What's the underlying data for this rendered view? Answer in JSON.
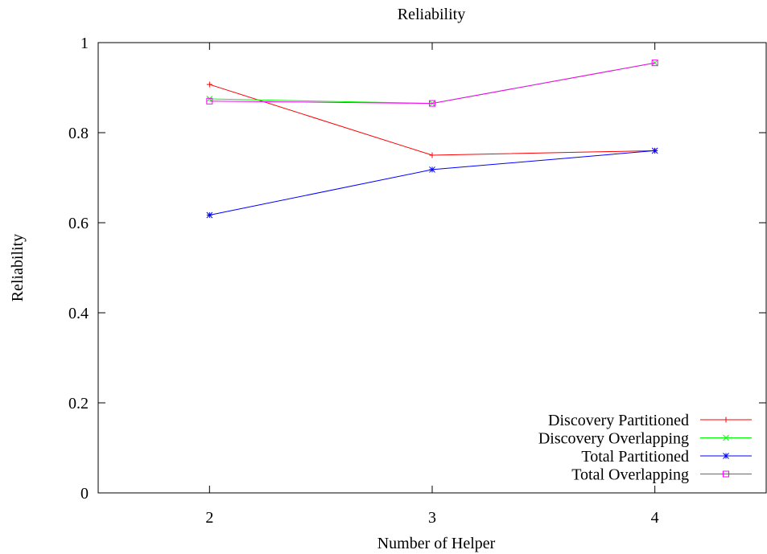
{
  "chart_data": {
    "type": "line",
    "title": "Reliability",
    "xlabel": "Number of Helper",
    "ylabel": "Reliability",
    "x": [
      2,
      3,
      4
    ],
    "xlim": [
      1.5,
      4.5
    ],
    "ylim": [
      0,
      1
    ],
    "xticks": [
      "2",
      "3",
      "4"
    ],
    "yticks": [
      "0",
      "0.2",
      "0.4",
      "0.6",
      "0.8",
      "1"
    ],
    "grid": false,
    "legend_position": "bottom-right",
    "series": [
      {
        "name": "Discovery Partitioned",
        "values": [
          0.907,
          0.75,
          0.76
        ],
        "color": "#ff0000",
        "marker": "plus"
      },
      {
        "name": "Discovery Overlapping",
        "values": [
          0.875,
          0.865,
          0.955
        ],
        "color": "#00ff00",
        "marker": "cross"
      },
      {
        "name": "Total Partitioned",
        "values": [
          0.617,
          0.718,
          0.76
        ],
        "color": "#0000ff",
        "marker": "star"
      },
      {
        "name": "Total Overlapping",
        "values": [
          0.87,
          0.865,
          0.955
        ],
        "color": "#ff00ff",
        "marker": "square"
      }
    ]
  }
}
